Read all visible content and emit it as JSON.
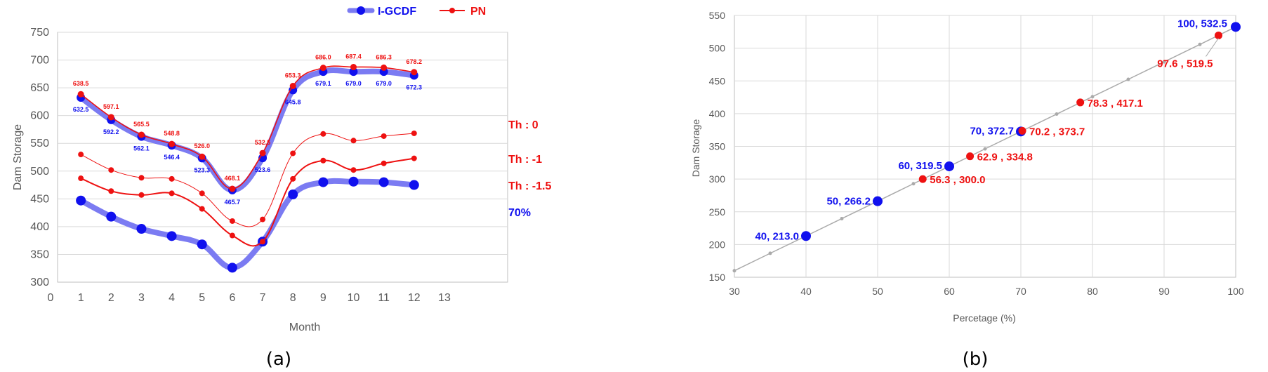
{
  "colors": {
    "blue": "#1010ee",
    "blue_light": "#7b7bf2",
    "red": "#ee1111",
    "grid": "#d9d9d9",
    "axis_text": "#595959",
    "ref_line": "#aaaaaa"
  },
  "chart_data": [
    {
      "type": "line",
      "caption": "(a)",
      "xlabel": "Month",
      "ylabel": "Dam Storage",
      "xlim": [
        0,
        13
      ],
      "ylim": [
        300,
        750
      ],
      "x_ticks": [
        "0",
        "1",
        "2",
        "3",
        "4",
        "5",
        "6",
        "7",
        "8",
        "9",
        "10",
        "11",
        "12",
        "13"
      ],
      "y_ticks": [
        "300",
        "350",
        "400",
        "450",
        "500",
        "550",
        "600",
        "650",
        "700",
        "750"
      ],
      "grid": true,
      "legend": [
        "I-GCDF",
        "PN"
      ],
      "legend_position": "top",
      "x": [
        1,
        2,
        3,
        4,
        5,
        6,
        7,
        8,
        9,
        10,
        11,
        12
      ],
      "series": [
        {
          "name": "I-GCDF",
          "role": "igcdf_th0",
          "values": [
            632.5,
            592.2,
            562.1,
            546.4,
            523.3,
            465.7,
            523.6,
            645.8,
            679.1,
            679.0,
            679.0,
            672.3
          ],
          "labels": [
            "632.5",
            "592.2",
            "562.1",
            "546.4",
            "523.3",
            "465.7",
            "523.6",
            "645.8",
            "679.1",
            "679.0",
            "679.0",
            "672.3"
          ]
        },
        {
          "name": "PN",
          "role": "pn_th0",
          "values": [
            638.5,
            597.1,
            565.5,
            548.8,
            526.0,
            468.1,
            532.5,
            653.3,
            686.0,
            687.4,
            686.3,
            678.2
          ],
          "labels": [
            "638.5",
            "597.1",
            "565.5",
            "548.8",
            "526.0",
            "468.1",
            "532.5",
            "653.3",
            "686.0",
            "687.4",
            "686.3",
            "678.2"
          ]
        },
        {
          "role": "pn_th_minus1",
          "values": [
            530,
            502,
            488,
            486,
            460,
            410,
            413,
            532,
            567,
            555,
            563,
            568
          ]
        },
        {
          "role": "pn_th_minus1_5",
          "values": [
            487,
            464,
            457,
            460,
            432,
            384,
            373,
            486,
            519,
            502,
            514,
            523
          ]
        },
        {
          "role": "igcdf_70",
          "values": [
            447,
            418,
            396,
            383,
            368,
            326,
            373,
            458,
            480,
            481,
            480,
            475
          ]
        }
      ],
      "annotations": [
        "Th : 0",
        "Th : -1",
        "Th : -1.5",
        "70%"
      ]
    },
    {
      "type": "scatter",
      "caption": "(b)",
      "xlabel": "Percetage (%)",
      "ylabel": "Dam Storage",
      "xlim": [
        30,
        100
      ],
      "ylim": [
        150,
        550
      ],
      "x_ticks": [
        "30",
        "40",
        "50",
        "60",
        "70",
        "80",
        "90",
        "100"
      ],
      "y_ticks": [
        "150",
        "200",
        "250",
        "300",
        "350",
        "400",
        "450",
        "500",
        "550"
      ],
      "grid": true,
      "reference_line": {
        "x": [
          30,
          35,
          40,
          45,
          50,
          55,
          60,
          65,
          70,
          75,
          80,
          85,
          90,
          95,
          100
        ],
        "y": [
          160,
          186.6,
          213,
          239.6,
          266.2,
          292.9,
          319.5,
          346.1,
          372.7,
          399.3,
          425.9,
          452.4,
          479,
          505.7,
          532.5
        ]
      },
      "blue_points": [
        {
          "x": 40,
          "y": 213.0,
          "label": "40, 213.0"
        },
        {
          "x": 50,
          "y": 266.2,
          "label": "50, 266.2"
        },
        {
          "x": 60,
          "y": 319.5,
          "label": "60, 319.5"
        },
        {
          "x": 70,
          "y": 372.7,
          "label": "70, 372.7"
        },
        {
          "x": 100,
          "y": 532.5,
          "label": "100, 532.5"
        }
      ],
      "red_points": [
        {
          "x": 56.3,
          "y": 300.0,
          "label": "56.3 , 300.0"
        },
        {
          "x": 62.9,
          "y": 334.8,
          "label": "62.9 , 334.8"
        },
        {
          "x": 70.2,
          "y": 373.7,
          "label": "70.2 , 373.7"
        },
        {
          "x": 78.3,
          "y": 417.1,
          "label": "78.3 , 417.1"
        },
        {
          "x": 97.6,
          "y": 519.5,
          "label": "97.6 , 519.5"
        }
      ]
    }
  ]
}
